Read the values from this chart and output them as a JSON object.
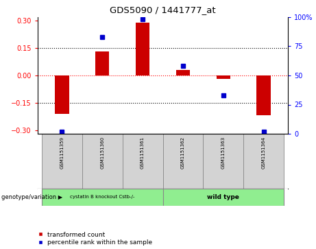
{
  "title": "GDS5090 / 1441777_at",
  "samples": [
    "GSM1151359",
    "GSM1151360",
    "GSM1151361",
    "GSM1151362",
    "GSM1151363",
    "GSM1151364"
  ],
  "transformed_count": [
    -0.21,
    0.13,
    0.29,
    0.03,
    -0.02,
    -0.22
  ],
  "percentile_rank": [
    2,
    83,
    98,
    58,
    33,
    2
  ],
  "ylim": [
    -0.32,
    0.32
  ],
  "yticks_left": [
    -0.3,
    -0.15,
    0,
    0.15,
    0.3
  ],
  "yticks_right": [
    0,
    25,
    50,
    75,
    100
  ],
  "dotted_lines_black": [
    0.15,
    -0.15
  ],
  "dotted_line_red": 0.0,
  "bar_color": "#cc0000",
  "point_color": "#0000cc",
  "group1_label": "cystatin B knockout Cstb-/-",
  "group2_label": "wild type",
  "group_color": "#90ee90",
  "group_row_label": "genotype/variation",
  "legend_bar_label": "transformed count",
  "legend_point_label": "percentile rank within the sample",
  "bar_width": 0.35,
  "sample_box_color": "#d3d3d3",
  "markersize": 4
}
